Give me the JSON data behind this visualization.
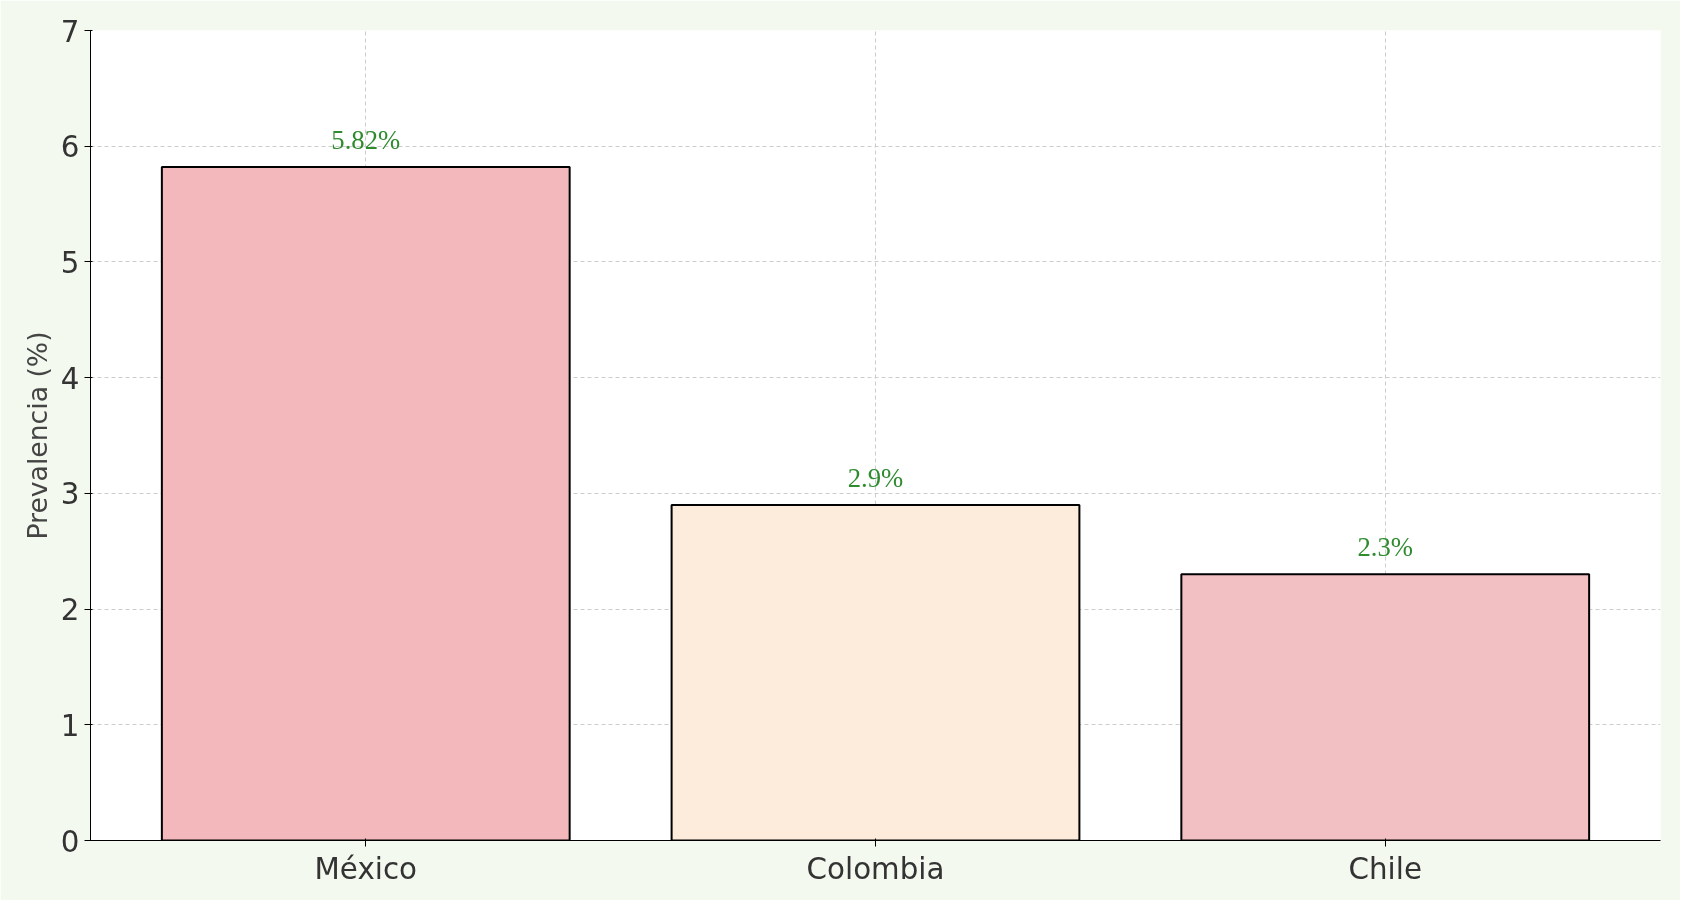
{
  "chart_data": {
    "type": "bar",
    "ylabel": "Prevalencia (%)",
    "categories": [
      "México",
      "Colombia",
      "Chile"
    ],
    "values": [
      5.82,
      2.9,
      2.3
    ],
    "value_labels": [
      "5.82%",
      "2.9%",
      "2.3%"
    ],
    "colors": [
      "#f2b8bc",
      "#fdebdb",
      "#f2bfc2"
    ],
    "ylim": [
      0,
      7
    ],
    "yticks": [
      0,
      1,
      2,
      3,
      4,
      5,
      6,
      7
    ],
    "grid": true
  }
}
